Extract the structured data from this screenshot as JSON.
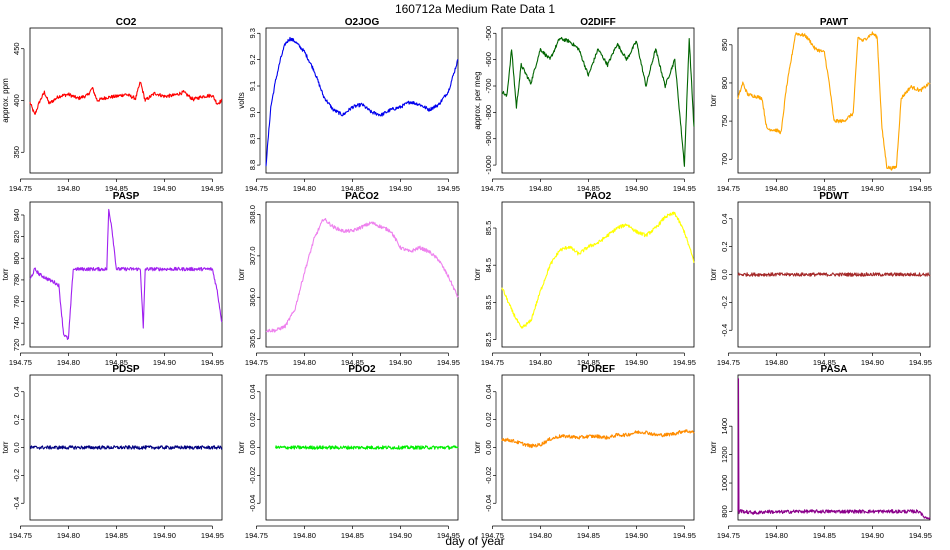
{
  "figure": {
    "title": "160712a   Medium Rate Data 1",
    "xlabel": "day of year"
  },
  "chart_data": [
    {
      "type": "line",
      "title": "CO2",
      "ylabel": "approx. ppm",
      "color": "#ff0000",
      "xlim": [
        194.76,
        194.96
      ],
      "ylim": [
        330,
        470
      ],
      "yticks": [
        350,
        400,
        450
      ],
      "xticks": [
        "194.75",
        "194.80",
        "194.85",
        "194.90",
        "194.95"
      ],
      "x": [
        194.76,
        194.765,
        194.77,
        194.775,
        194.78,
        194.79,
        194.8,
        194.81,
        194.82,
        194.825,
        194.83,
        194.84,
        194.85,
        194.86,
        194.87,
        194.875,
        194.88,
        194.89,
        194.9,
        194.91,
        194.92,
        194.93,
        194.94,
        194.95,
        194.955,
        194.96
      ],
      "values": [
        398,
        386,
        399,
        408,
        397,
        404,
        406,
        402,
        405,
        412,
        400,
        403,
        404,
        406,
        402,
        418,
        400,
        407,
        404,
        405,
        408,
        401,
        404,
        405,
        397,
        400
      ]
    },
    {
      "type": "line",
      "title": "O2JOG",
      "ylabel": "volts",
      "color": "#0000ee",
      "xlim": [
        194.76,
        194.96
      ],
      "ylim": [
        8.77,
        9.32
      ],
      "yticks": [
        8.8,
        8.9,
        9.0,
        9.1,
        9.2,
        9.3
      ],
      "yticklabels": [
        "8.8",
        "8.9",
        "9.0",
        "9.1",
        "9.2",
        "9.3"
      ],
      "xticks": [
        "194.75",
        "194.80",
        "194.85",
        "194.90",
        "194.95"
      ],
      "x": [
        194.76,
        194.765,
        194.77,
        194.775,
        194.78,
        194.785,
        194.79,
        194.795,
        194.8,
        194.81,
        194.82,
        194.83,
        194.84,
        194.85,
        194.86,
        194.87,
        194.88,
        194.89,
        194.9,
        194.91,
        194.92,
        194.93,
        194.94,
        194.95,
        194.96
      ],
      "values": [
        8.8,
        9.02,
        9.12,
        9.2,
        9.26,
        9.28,
        9.27,
        9.25,
        9.23,
        9.16,
        9.06,
        9.01,
        8.99,
        9.02,
        9.03,
        9.0,
        8.99,
        9.01,
        9.02,
        9.04,
        9.03,
        9.01,
        9.03,
        9.08,
        9.2
      ]
    },
    {
      "type": "line",
      "title": "O2DIFF",
      "ylabel": "approx. per meg",
      "color": "#006400",
      "xlim": [
        194.76,
        194.96
      ],
      "ylim": [
        -1030,
        -480
      ],
      "yticks": [
        -1000,
        -900,
        -800,
        -700,
        -600,
        -500
      ],
      "xticks": [
        "194.75",
        "194.80",
        "194.85",
        "194.90",
        "194.95"
      ],
      "x": [
        194.76,
        194.765,
        194.77,
        194.775,
        194.78,
        194.79,
        194.8,
        194.81,
        194.82,
        194.83,
        194.84,
        194.85,
        194.86,
        194.87,
        194.88,
        194.89,
        194.9,
        194.91,
        194.92,
        194.93,
        194.94,
        194.95,
        194.955,
        194.96
      ],
      "values": [
        -720,
        -740,
        -560,
        -780,
        -620,
        -690,
        -560,
        -600,
        -520,
        -530,
        -560,
        -660,
        -560,
        -620,
        -540,
        -600,
        -530,
        -700,
        -560,
        -700,
        -600,
        -1000,
        -520,
        -860
      ]
    },
    {
      "type": "line",
      "title": "PAWT",
      "ylabel": "torr",
      "color": "#ffa500",
      "xlim": [
        194.76,
        194.96
      ],
      "ylim": [
        682,
        872
      ],
      "yticks": [
        700,
        750,
        800,
        850
      ],
      "xticks": [
        "194.75",
        "194.80",
        "194.85",
        "194.90",
        "194.95"
      ],
      "x": [
        194.76,
        194.765,
        194.77,
        194.78,
        194.785,
        194.79,
        194.8,
        194.805,
        194.81,
        194.82,
        194.83,
        194.835,
        194.84,
        194.85,
        194.855,
        194.86,
        194.87,
        194.875,
        194.88,
        194.885,
        194.89,
        194.9,
        194.905,
        194.91,
        194.915,
        194.92,
        194.925,
        194.93,
        194.94,
        194.95,
        194.96
      ],
      "values": [
        780,
        800,
        785,
        782,
        780,
        740,
        738,
        735,
        790,
        865,
        862,
        855,
        845,
        840,
        800,
        750,
        750,
        755,
        760,
        860,
        855,
        865,
        860,
        740,
        690,
        688,
        690,
        780,
        795,
        790,
        800
      ]
    },
    {
      "type": "line",
      "title": "PASP",
      "ylabel": "torr",
      "color": "#a020f0",
      "xlim": [
        194.76,
        194.96
      ],
      "ylim": [
        718,
        852
      ],
      "yticks": [
        720,
        740,
        760,
        780,
        800,
        820,
        840
      ],
      "xticks": [
        "194.75",
        "194.80",
        "194.85",
        "194.90",
        "194.95"
      ],
      "x": [
        194.76,
        194.765,
        194.77,
        194.78,
        194.785,
        194.79,
        194.795,
        194.8,
        194.805,
        194.81,
        194.82,
        194.83,
        194.84,
        194.842,
        194.845,
        194.85,
        194.86,
        194.87,
        194.875,
        194.878,
        194.88,
        194.89,
        194.9,
        194.91,
        194.92,
        194.93,
        194.94,
        194.95,
        194.955,
        194.96
      ],
      "values": [
        780,
        790,
        785,
        780,
        778,
        775,
        730,
        725,
        790,
        790,
        790,
        790,
        790,
        845,
        830,
        790,
        790,
        790,
        790,
        735,
        790,
        790,
        790,
        790,
        790,
        790,
        790,
        790,
        770,
        740
      ]
    },
    {
      "type": "line",
      "title": "PACO2",
      "ylabel": "torr",
      "color": "#ee82ee",
      "xlim": [
        194.76,
        194.96
      ],
      "ylim": [
        304.8,
        308.3
      ],
      "yticks": [
        305.0,
        306.0,
        307.0,
        308.0
      ],
      "yticklabels": [
        "305.0",
        "306.0",
        "307.0",
        "308.0"
      ],
      "xticks": [
        "194.75",
        "194.80",
        "194.85",
        "194.90",
        "194.95"
      ],
      "x": [
        194.76,
        194.77,
        194.78,
        194.79,
        194.8,
        194.81,
        194.82,
        194.83,
        194.84,
        194.85,
        194.86,
        194.87,
        194.88,
        194.89,
        194.9,
        194.91,
        194.92,
        194.93,
        194.94,
        194.95,
        194.96
      ],
      "values": [
        305.2,
        305.2,
        305.3,
        305.7,
        306.6,
        307.4,
        307.9,
        307.7,
        307.6,
        307.6,
        307.7,
        307.8,
        307.7,
        307.6,
        307.2,
        307.1,
        307.2,
        307.1,
        306.9,
        306.5,
        306.0
      ]
    },
    {
      "type": "line",
      "title": "PAO2",
      "ylabel": "torr",
      "color": "#ffff00",
      "xlim": [
        194.76,
        194.96
      ],
      "ylim": [
        82.3,
        86.2
      ],
      "yticks": [
        82.5,
        83.5,
        84.5,
        85.5
      ],
      "yticklabels": [
        "82.5",
        "83.5",
        "84.5",
        "85.5"
      ],
      "xticks": [
        "194.75",
        "194.80",
        "194.85",
        "194.90",
        "194.95"
      ],
      "x": [
        194.76,
        194.77,
        194.78,
        194.79,
        194.8,
        194.81,
        194.82,
        194.83,
        194.84,
        194.85,
        194.86,
        194.87,
        194.88,
        194.89,
        194.9,
        194.91,
        194.92,
        194.93,
        194.94,
        194.95,
        194.96
      ],
      "values": [
        83.9,
        83.3,
        82.8,
        83.0,
        83.8,
        84.5,
        84.9,
        85.0,
        84.8,
        85.0,
        85.1,
        85.3,
        85.5,
        85.6,
        85.4,
        85.3,
        85.5,
        85.8,
        85.9,
        85.4,
        84.6
      ]
    },
    {
      "type": "line",
      "title": "PDWT",
      "ylabel": "torr",
      "color": "#a52a2a",
      "xlim": [
        194.76,
        194.96
      ],
      "ylim": [
        -0.52,
        0.52
      ],
      "yticks": [
        -0.4,
        -0.2,
        0.0,
        0.2,
        0.4
      ],
      "yticklabels": [
        "-0.4",
        "-0.2",
        "0.0",
        "0.2",
        "0.4"
      ],
      "xticks": [
        "194.75",
        "194.80",
        "194.85",
        "194.90",
        "194.95"
      ],
      "x": [
        194.76,
        194.96
      ],
      "values": [
        0.0,
        0.0
      ]
    },
    {
      "type": "line",
      "title": "PDSP",
      "ylabel": "torr",
      "color": "#000080",
      "xlim": [
        194.76,
        194.96
      ],
      "ylim": [
        -0.52,
        0.52
      ],
      "yticks": [
        -0.4,
        -0.2,
        0.0,
        0.2,
        0.4
      ],
      "yticklabels": [
        "-0.4",
        "-0.2",
        "0.0",
        "0.2",
        "0.4"
      ],
      "xticks": [
        "194.75",
        "194.80",
        "194.85",
        "194.90",
        "194.95"
      ],
      "x": [
        194.76,
        194.96
      ],
      "values": [
        0.0,
        0.0
      ]
    },
    {
      "type": "line",
      "title": "PDO2",
      "ylabel": "torr",
      "color": "#00ee00",
      "xlim": [
        194.76,
        194.96
      ],
      "ylim": [
        -0.052,
        0.052
      ],
      "yticks": [
        -0.04,
        -0.02,
        0.0,
        0.02,
        0.04
      ],
      "yticklabels": [
        "-0.04",
        "-0.02",
        "0.00",
        "0.02",
        "0.04"
      ],
      "xticks": [
        "194.75",
        "194.80",
        "194.85",
        "194.90",
        "194.95"
      ],
      "x": [
        194.77,
        194.96
      ],
      "values": [
        0.0,
        0.0
      ]
    },
    {
      "type": "line",
      "title": "PDREF",
      "ylabel": "torr",
      "color": "#ff8c00",
      "xlim": [
        194.76,
        194.96
      ],
      "ylim": [
        -0.052,
        0.052
      ],
      "yticks": [
        -0.04,
        -0.02,
        0.0,
        0.02,
        0.04
      ],
      "yticklabels": [
        "-0.04",
        "-0.02",
        "0.00",
        "0.02",
        "0.04"
      ],
      "xticks": [
        "194.75",
        "194.80",
        "194.85",
        "194.90",
        "194.95"
      ],
      "x": [
        194.76,
        194.77,
        194.78,
        194.79,
        194.8,
        194.81,
        194.82,
        194.83,
        194.84,
        194.85,
        194.86,
        194.87,
        194.88,
        194.89,
        194.9,
        194.91,
        194.92,
        194.93,
        194.94,
        194.95,
        194.96
      ],
      "values": [
        0.006,
        0.005,
        0.003,
        0.001,
        0.002,
        0.006,
        0.008,
        0.008,
        0.007,
        0.008,
        0.008,
        0.007,
        0.009,
        0.009,
        0.011,
        0.011,
        0.009,
        0.009,
        0.01,
        0.012,
        0.011
      ]
    },
    {
      "type": "line",
      "title": "PASA",
      "ylabel": "torr",
      "color": "#8b008b",
      "xlim": [
        194.76,
        194.96
      ],
      "ylim": [
        740,
        1760
      ],
      "yticks": [
        800,
        1000,
        1200,
        1400
      ],
      "xticks": [
        "194.75",
        "194.80",
        "194.85",
        "194.90",
        "194.95"
      ],
      "x": [
        194.76,
        194.7605,
        194.761,
        194.7615,
        194.762,
        194.77,
        194.78,
        194.79,
        194.8,
        194.82,
        194.85,
        194.88,
        194.9,
        194.93,
        194.95,
        194.952,
        194.956,
        194.96
      ],
      "values": [
        790,
        1740,
        790,
        800,
        805,
        795,
        790,
        800,
        795,
        800,
        800,
        800,
        800,
        800,
        800,
        770,
        755,
        760
      ]
    }
  ]
}
